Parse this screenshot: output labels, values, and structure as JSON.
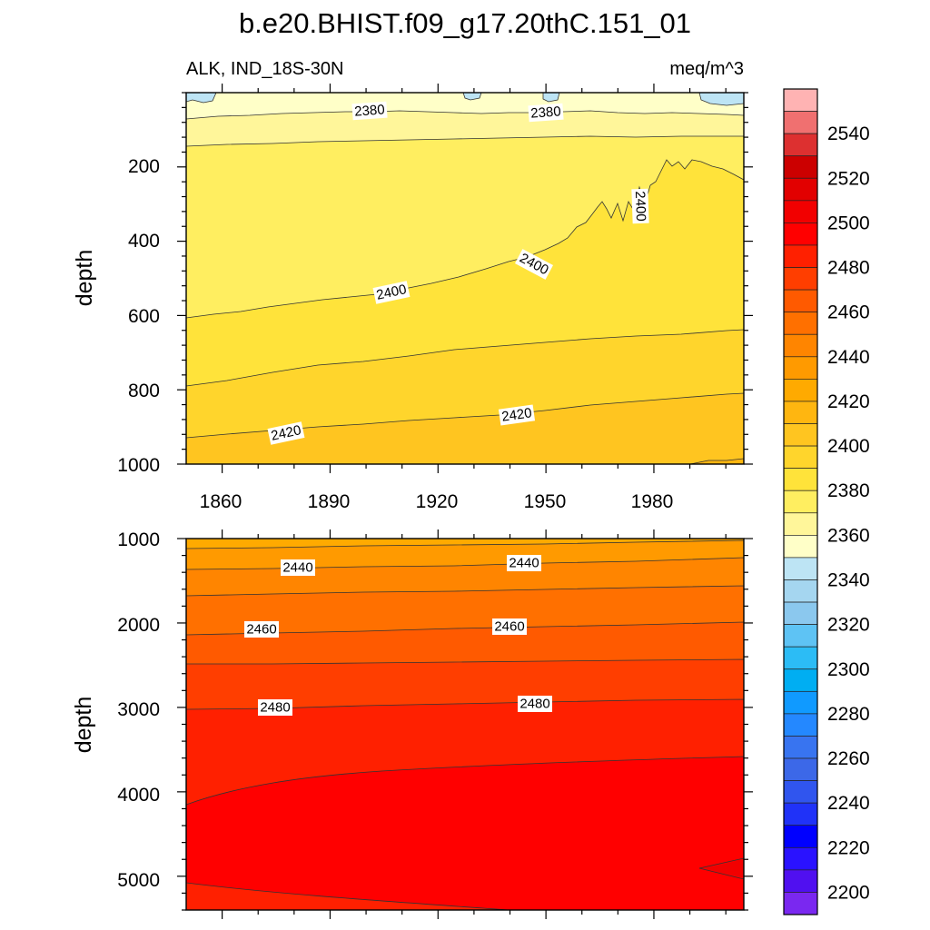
{
  "chart_data": {
    "type": "contour",
    "title": "b.e20.BHIST.f09_g17.20thC.151_01",
    "left_subtitle": "ALK, IND_18S-30N",
    "right_subtitle": "meq/m^3",
    "xlabel": "",
    "ylabel": "depth",
    "xlim": [
      1850,
      2005
    ],
    "x_ticks": [
      "1860",
      "1890",
      "1920",
      "1950",
      "1980"
    ],
    "top_panel": {
      "ylim": [
        0,
        1000
      ],
      "y_ticks": [
        "200",
        "400",
        "600",
        "800",
        "1000"
      ],
      "contour_labels": [
        "2380",
        "2380",
        "2400",
        "2400",
        "2400",
        "2420",
        "2420"
      ]
    },
    "bottom_panel": {
      "ylim": [
        1000,
        5400
      ],
      "y_ticks": [
        "1000",
        "2000",
        "3000",
        "4000",
        "5000"
      ],
      "contour_labels": [
        "2440",
        "2440",
        "2460",
        "2460",
        "2480",
        "2480"
      ]
    },
    "colorbar": {
      "tick_labels": [
        "2540",
        "2520",
        "2500",
        "2480",
        "2460",
        "2440",
        "2420",
        "2400",
        "2380",
        "2360",
        "2340",
        "2320",
        "2300",
        "2280",
        "2260",
        "2240",
        "2220",
        "2200"
      ],
      "colors_top_to_bottom": [
        "#ffb3b3",
        "#f07070",
        "#dd3030",
        "#cc0000",
        "#e20000",
        "#f20000",
        "#ff0000",
        "#ff2000",
        "#ff3e00",
        "#ff5a00",
        "#ff7000",
        "#ff8500",
        "#ff9a00",
        "#ffaa00",
        "#ffb610",
        "#ffc520",
        "#ffd52c",
        "#ffe33a",
        "#ffee60",
        "#fff69a",
        "#ffffc8",
        "#bde4f4",
        "#a5d6f0",
        "#8bc8ee",
        "#5ec3f4",
        "#2cbcf5",
        "#00aef2",
        "#109aff",
        "#2488ff",
        "#3874f0",
        "#3c68e8",
        "#3055ee",
        "#2032f8",
        "#0000ff",
        "#2a12ff",
        "#5010f0",
        "#7a28f0"
      ]
    }
  }
}
